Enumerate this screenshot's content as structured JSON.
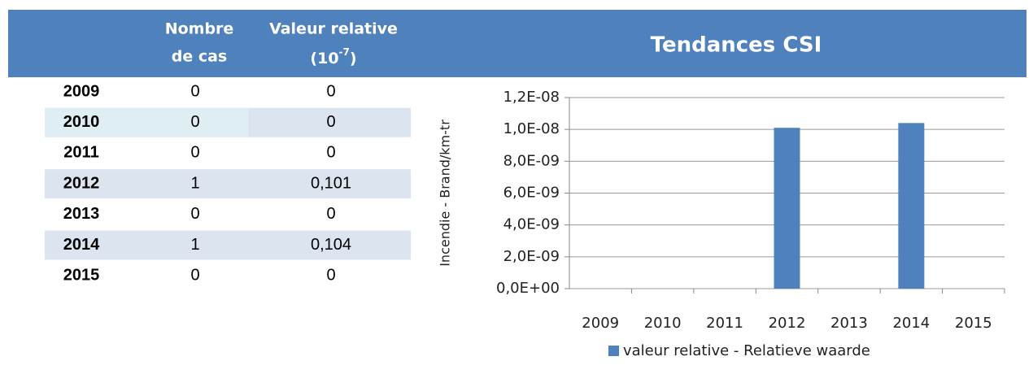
{
  "table": {
    "header": [
      [
        "Nombre",
        "de cas"
      ],
      [
        "Valeur relative",
        "(10",
        "-7",
        ")"
      ]
    ],
    "rows": [
      [
        "2009",
        "0",
        "0"
      ],
      [
        "2010",
        "0",
        "0"
      ],
      [
        "2011",
        "0",
        "0"
      ],
      [
        "2012",
        "1",
        "0,101"
      ],
      [
        "2013",
        "0",
        "0"
      ],
      [
        "2014",
        "1",
        "0,104"
      ],
      [
        "2015",
        "0",
        "0"
      ]
    ]
  },
  "chart_data": {
    "type": "bar",
    "title": "Tendances CSI",
    "y_label": "Incendie - Brand/km-tr",
    "categories": [
      "2009",
      "2010",
      "2011",
      "2012",
      "2013",
      "2014",
      "2015"
    ],
    "series": [
      {
        "name": "valeur relative - Relatieve waarde",
        "color": "#4f81bd",
        "values": [
          0,
          0,
          0,
          1.01e-08,
          0,
          1.04e-08,
          0
        ]
      }
    ],
    "ylim": [
      0,
      1.2e-08
    ],
    "yticks": [
      {
        "value": 0,
        "label": "0,0E+00"
      },
      {
        "value": 2e-09,
        "label": "2,0E-09"
      },
      {
        "value": 4e-09,
        "label": "4,0E-09"
      },
      {
        "value": 6e-09,
        "label": "6,0E-09"
      },
      {
        "value": 8e-09,
        "label": "8,0E-09"
      },
      {
        "value": 1e-08,
        "label": "1,0E-08"
      },
      {
        "value": 1.2e-08,
        "label": "1,2E-08"
      }
    ],
    "grid": true,
    "legend": "bottom"
  }
}
